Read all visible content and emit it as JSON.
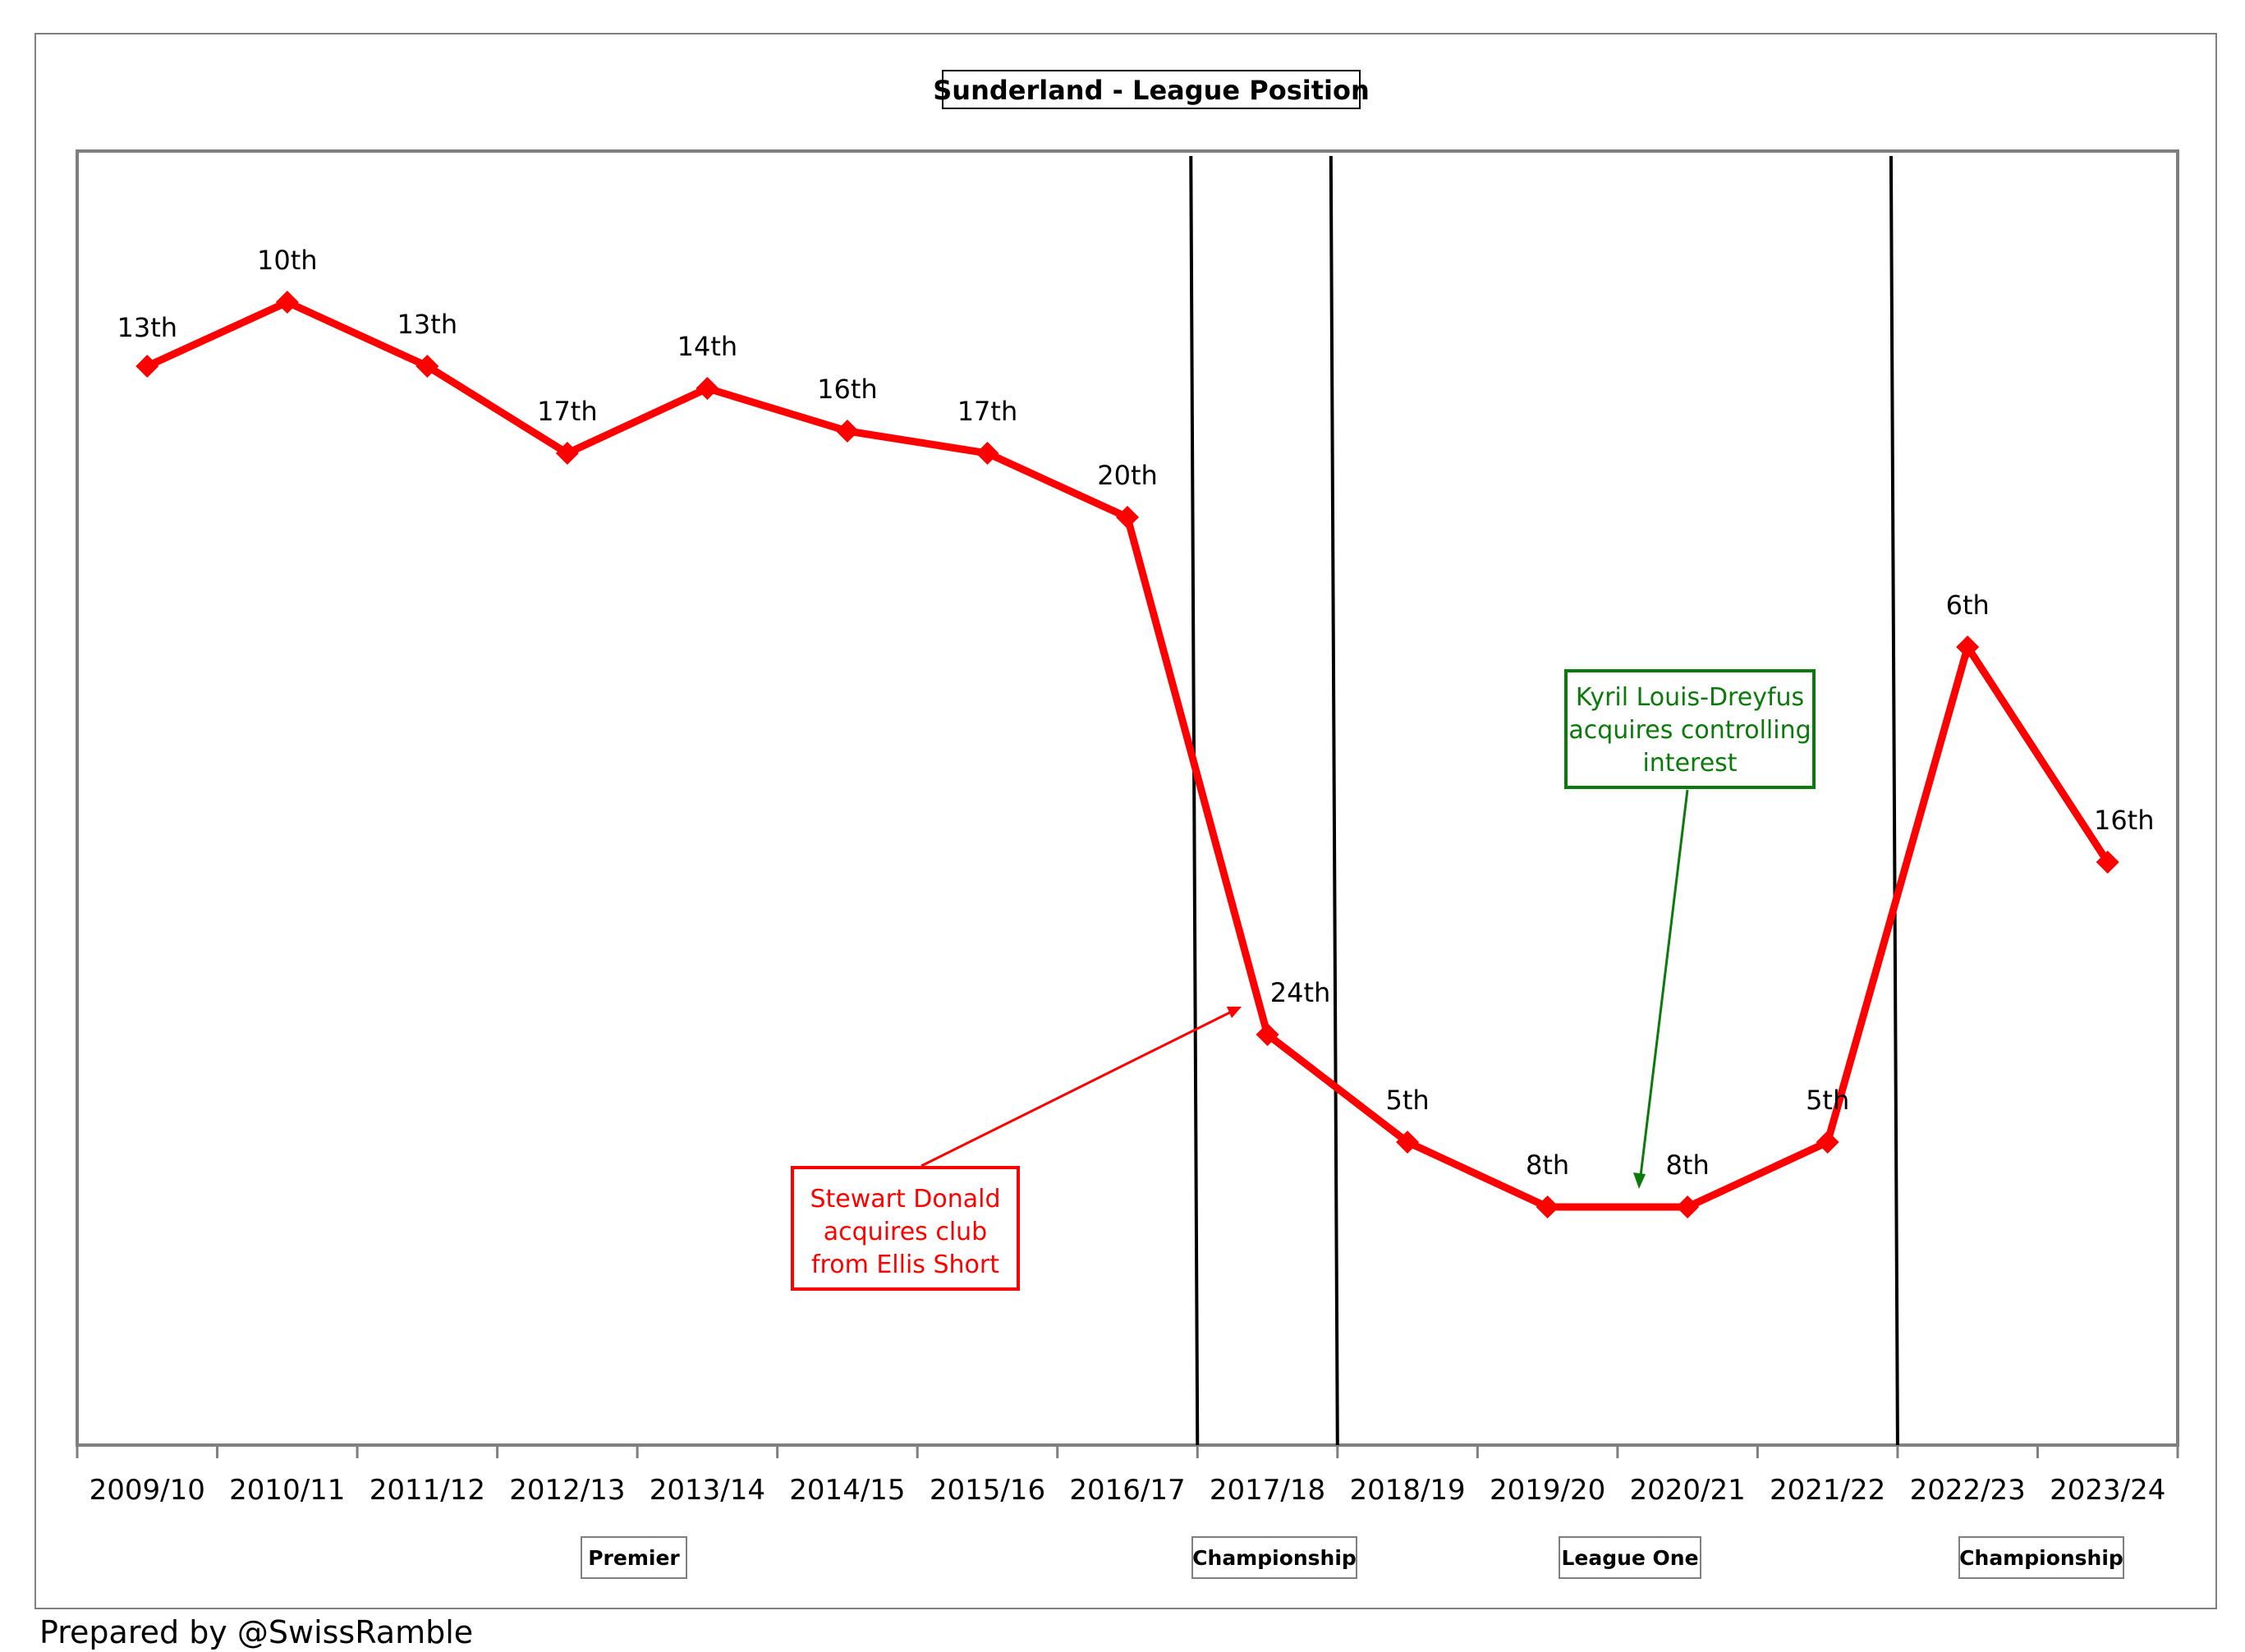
{
  "chart_data": {
    "type": "line",
    "title": "Sunderland - League Position",
    "categories": [
      "2009/10",
      "2010/11",
      "2011/12",
      "2012/13",
      "2013/14",
      "2014/15",
      "2015/16",
      "2016/17",
      "2017/18",
      "2018/19",
      "2019/20",
      "2020/21",
      "2021/22",
      "2022/23",
      "2023/24"
    ],
    "series": [
      {
        "values": [
          13,
          10,
          13,
          17,
          14,
          16,
          17,
          20,
          24,
          5,
          8,
          8,
          5,
          6,
          16
        ],
        "labels": [
          "13th",
          "10th",
          "13th",
          "17th",
          "14th",
          "16th",
          "17th",
          "20th",
          "24th",
          "5th",
          "8th",
          "8th",
          "5th",
          "6th",
          "16th"
        ],
        "divisions": [
          "Premier",
          "Premier",
          "Premier",
          "Premier",
          "Premier",
          "Premier",
          "Premier",
          "Premier",
          "Championship",
          "League One",
          "League One",
          "League One",
          "League One",
          "Championship",
          "Championship"
        ]
      }
    ],
    "divisions": [
      {
        "label": "Premier",
        "categories": [
          "2009/10",
          "2016/17"
        ]
      },
      {
        "label": "Championship",
        "categories": [
          "2017/18",
          "2017/18"
        ]
      },
      {
        "label": "League One",
        "categories": [
          "2018/19",
          "2021/22"
        ]
      },
      {
        "label": "Championship",
        "categories": [
          "2022/23",
          "2023/24"
        ]
      }
    ],
    "annotations": [
      {
        "text": [
          "Stewart Donald",
          "acquires club",
          "from Ellis Short"
        ],
        "color": "#ff0000",
        "points_to": "2017/18"
      },
      {
        "text": [
          "Kyril Louis-Dreyfus",
          "acquires controlling",
          "interest"
        ],
        "color": "#0a7a0a",
        "points_to": "2020/21"
      }
    ],
    "line_color": "#ff0000",
    "xlabel": "",
    "ylabel": "",
    "grid": false,
    "legend": "none"
  },
  "footer": "Prepared by @SwissRamble"
}
